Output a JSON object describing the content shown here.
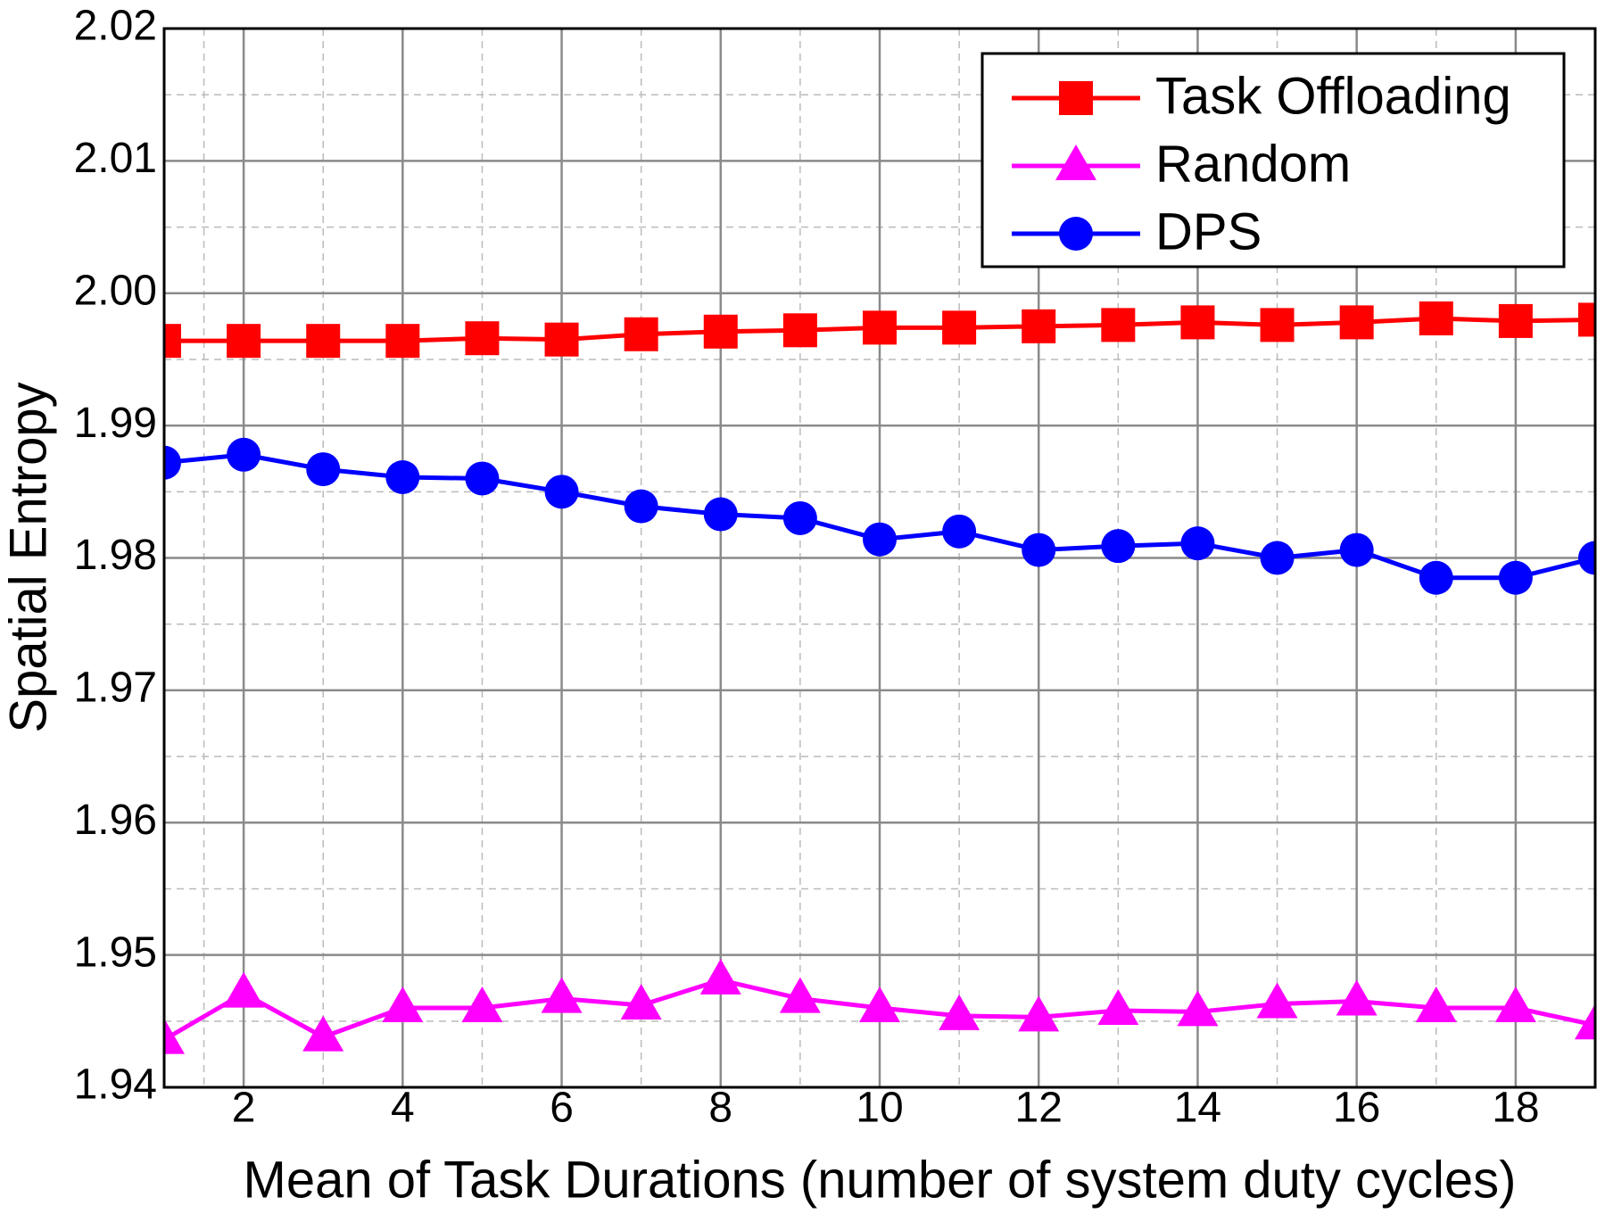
{
  "chart_data": {
    "type": "line",
    "x_label": "Mean of Task Durations (number of system duty cycles)",
    "y_label": "Spatial Entropy",
    "x": [
      1,
      2,
      3,
      4,
      5,
      6,
      7,
      8,
      9,
      10,
      11,
      12,
      13,
      14,
      15,
      16,
      17,
      18,
      19
    ],
    "xlim": [
      1,
      19
    ],
    "xticks": [
      2,
      4,
      6,
      8,
      10,
      12,
      14,
      16,
      18
    ],
    "ylim": [
      1.94,
      2.02
    ],
    "yticks": [
      1.94,
      1.95,
      1.96,
      1.97,
      1.98,
      1.99,
      {
        "value": 2,
        "label": "2.00"
      },
      2.01,
      2.02
    ],
    "grid": true,
    "minor_grid": true,
    "legend": "upper right",
    "series": [
      {
        "name": "Task Offloading",
        "color": "#ff0000",
        "marker": "square",
        "values": [
          1.9964,
          1.9964,
          1.9964,
          1.9964,
          1.9966,
          1.9965,
          1.9969,
          1.9971,
          1.9972,
          1.9974,
          1.9974,
          1.9975,
          1.9976,
          1.9978,
          1.9976,
          1.9978,
          1.9981,
          1.9979,
          1.998
        ]
      },
      {
        "name": "Random",
        "color": "#ff00ff",
        "marker": "triangle",
        "values": [
          1.9436,
          1.9471,
          1.9438,
          1.946,
          1.946,
          1.9467,
          1.9462,
          1.9481,
          1.9467,
          1.946,
          1.9454,
          1.9453,
          1.9458,
          1.9457,
          1.9463,
          1.9465,
          1.946,
          1.946,
          1.9447
        ]
      },
      {
        "name": "DPS",
        "color": "#0000ff",
        "marker": "circle",
        "values": [
          1.9872,
          1.9878,
          1.9867,
          1.9861,
          1.986,
          1.985,
          1.9839,
          1.9833,
          1.983,
          1.9814,
          1.982,
          1.9806,
          1.9809,
          1.9811,
          1.98,
          1.9806,
          1.9785,
          1.9785,
          1.98
        ]
      }
    ]
  }
}
